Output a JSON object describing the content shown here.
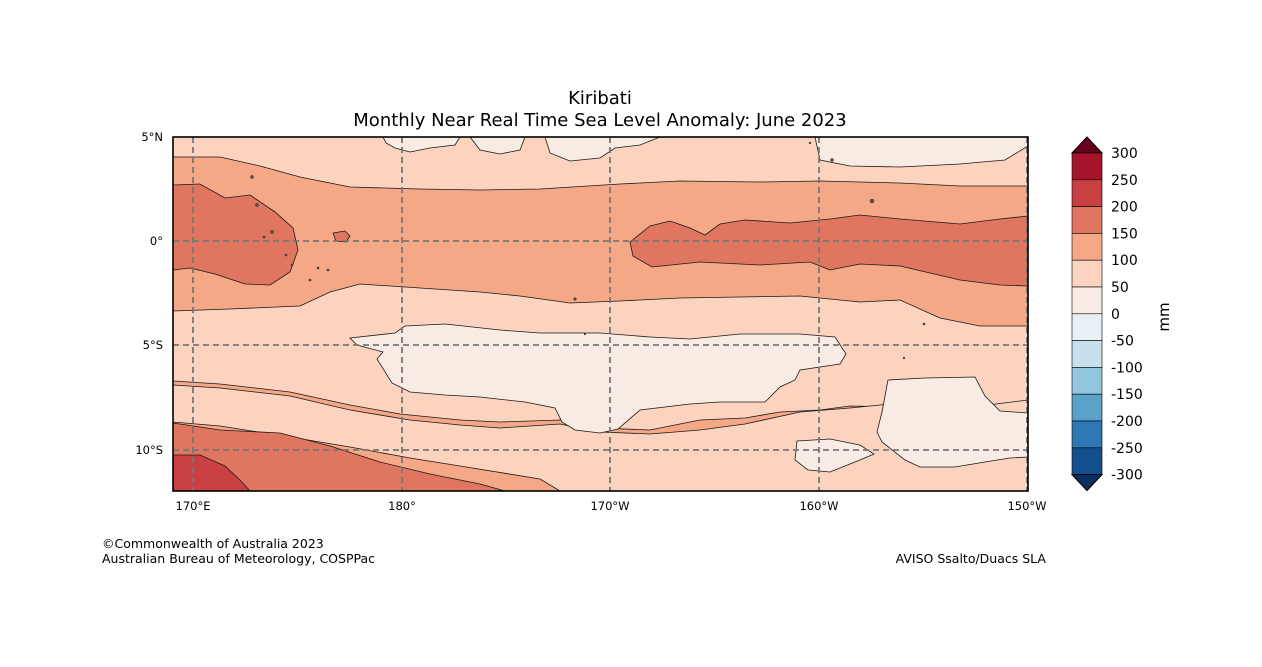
{
  "title": {
    "region": "Kiribati",
    "subtitle": "Monthly Near Real Time Sea Level Anomaly: June 2023"
  },
  "map": {
    "lat_labels": [
      "5°N",
      "0°",
      "5°S",
      "10°S"
    ],
    "lon_labels": [
      "170°E",
      "180°",
      "170°W",
      "160°W",
      "150°W"
    ]
  },
  "colorbar": {
    "unit": "mm",
    "levels": [
      "300",
      "250",
      "200",
      "150",
      "100",
      "50",
      "0",
      "-50",
      "-100",
      "-150",
      "-200",
      "-250",
      "-300"
    ],
    "colors": [
      "#67001f",
      "#a51429",
      "#c84042",
      "#e07660",
      "#f5a886",
      "#fbd3be",
      "#f8ebe4",
      "#e7f0f5",
      "#c7e0ee",
      "#94c5df",
      "#5ba2cb",
      "#2d78b5",
      "#134f8d",
      "#0c2f62"
    ]
  },
  "footer": {
    "credit_line1": "©Commonwealth of Australia 2023",
    "credit_line2": "Australian Bureau of Meteorology, COSPPac",
    "source": "AVISO Ssalto/Duacs SLA"
  }
}
